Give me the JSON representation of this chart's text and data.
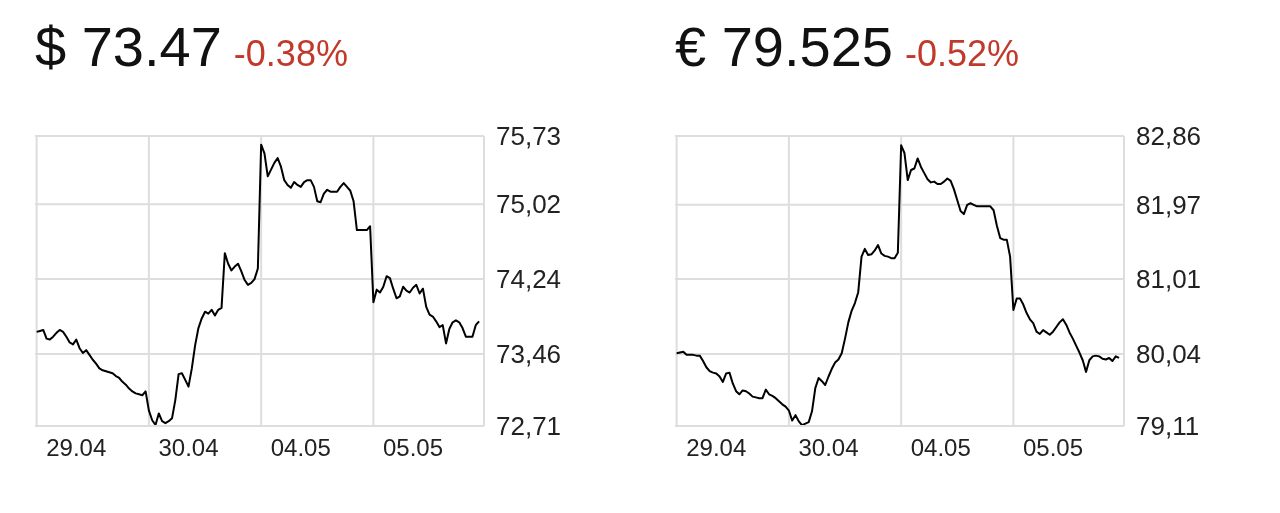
{
  "chart_data": [
    {
      "type": "line",
      "title": "$ 73.47",
      "subtitle": "-0.38%",
      "grid": true,
      "marker": "none",
      "categories": [
        null,
        null,
        null,
        null,
        null,
        null,
        null,
        null,
        null,
        null,
        null,
        null,
        "29.04",
        null,
        null,
        null,
        null,
        null,
        null,
        null,
        null,
        null,
        null,
        null,
        null,
        null,
        null,
        null,
        null,
        null,
        null,
        null,
        null,
        null,
        null,
        null,
        null,
        null,
        null,
        null,
        null,
        null,
        null,
        null,
        null,
        null,
        "30.04",
        null,
        null,
        null,
        null,
        null,
        null,
        null,
        null,
        null,
        null,
        null,
        null,
        null,
        null,
        null,
        null,
        null,
        null,
        null,
        null,
        null,
        null,
        null,
        null,
        null,
        null,
        null,
        null,
        null,
        null,
        null,
        null,
        null,
        "04.05",
        null,
        null,
        null,
        null,
        null,
        null,
        null,
        null,
        null,
        null,
        null,
        null,
        null,
        null,
        null,
        null,
        null,
        null,
        null,
        null,
        null,
        null,
        null,
        null,
        null,
        null,
        null,
        null,
        null,
        null,
        null,
        null,
        null,
        "05.05",
        null,
        null,
        null,
        null,
        null,
        null,
        null,
        null,
        null,
        null,
        null,
        null,
        null,
        null,
        null,
        null,
        null,
        null,
        null,
        null,
        null
      ],
      "ylim": [
        72.71,
        75.73
      ],
      "yticks": [
        {
          "value": 72.71,
          "label": "72,71"
        },
        {
          "value": 73.46,
          "label": "73,46"
        },
        {
          "value": 74.24,
          "label": "74,24"
        },
        {
          "value": 75.02,
          "label": "75,02"
        },
        {
          "value": 75.73,
          "label": "75,73"
        }
      ],
      "series": [
        {
          "color": "#000000",
          "values": [
            73.69,
            73.7,
            73.71,
            73.62,
            73.61,
            73.64,
            73.68,
            73.71,
            73.69,
            73.64,
            73.58,
            73.56,
            73.61,
            73.52,
            73.47,
            73.5,
            73.45,
            73.4,
            73.36,
            73.31,
            73.29,
            73.28,
            73.27,
            73.26,
            73.23,
            73.21,
            73.17,
            73.14,
            73.1,
            73.07,
            73.05,
            73.04,
            73.03,
            73.07,
            72.87,
            72.77,
            72.72,
            72.84,
            72.76,
            72.74,
            72.76,
            72.79,
            72.98,
            73.25,
            73.26,
            73.19,
            73.12,
            73.31,
            73.55,
            73.73,
            73.83,
            73.9,
            73.88,
            73.92,
            73.86,
            73.92,
            73.94,
            74.51,
            74.4,
            74.33,
            74.37,
            74.4,
            74.32,
            74.23,
            74.18,
            74.2,
            74.24,
            74.35,
            75.64,
            75.55,
            75.31,
            75.38,
            75.45,
            75.5,
            75.41,
            75.27,
            75.22,
            75.19,
            75.25,
            75.22,
            75.2,
            75.25,
            75.27,
            75.27,
            75.2,
            75.05,
            75.04,
            75.13,
            75.17,
            75.15,
            75.15,
            75.15,
            75.2,
            75.24,
            75.2,
            75.16,
            75.05,
            74.75,
            74.75,
            74.75,
            74.75,
            74.79,
            74.0,
            74.13,
            74.1,
            74.16,
            74.27,
            74.25,
            74.14,
            74.04,
            74.06,
            74.16,
            74.12,
            74.1,
            74.15,
            74.18,
            74.09,
            74.14,
            73.95,
            73.87,
            73.85,
            73.8,
            73.74,
            73.76,
            73.57,
            73.72,
            73.79,
            73.81,
            73.79,
            73.73,
            73.64,
            73.64,
            73.64,
            73.76,
            73.8,
            null
          ]
        }
      ]
    },
    {
      "type": "line",
      "title": "€ 79.525",
      "subtitle": "-0.52%",
      "grid": true,
      "marker": "none",
      "categories": [
        null,
        null,
        null,
        null,
        null,
        null,
        null,
        null,
        null,
        null,
        null,
        null,
        "29.04",
        null,
        null,
        null,
        null,
        null,
        null,
        null,
        null,
        null,
        null,
        null,
        null,
        null,
        null,
        null,
        null,
        null,
        null,
        null,
        null,
        null,
        null,
        null,
        null,
        null,
        null,
        null,
        null,
        null,
        null,
        null,
        null,
        null,
        "30.04",
        null,
        null,
        null,
        null,
        null,
        null,
        null,
        null,
        null,
        null,
        null,
        null,
        null,
        null,
        null,
        null,
        null,
        null,
        null,
        null,
        null,
        null,
        null,
        null,
        null,
        null,
        null,
        null,
        null,
        null,
        null,
        null,
        null,
        "04.05",
        null,
        null,
        null,
        null,
        null,
        null,
        null,
        null,
        null,
        null,
        null,
        null,
        null,
        null,
        null,
        null,
        null,
        null,
        null,
        null,
        null,
        null,
        null,
        null,
        null,
        null,
        null,
        null,
        null,
        null,
        null,
        null,
        null,
        "05.05",
        null,
        null,
        null,
        null,
        null,
        null,
        null,
        null,
        null,
        null,
        null,
        null,
        null,
        null,
        null,
        null,
        null,
        null,
        null,
        null,
        null
      ],
      "ylim": [
        79.11,
        82.86
      ],
      "yticks": [
        {
          "value": 79.11,
          "label": "79,11"
        },
        {
          "value": 80.04,
          "label": "80,04"
        },
        {
          "value": 81.01,
          "label": "81,01"
        },
        {
          "value": 81.97,
          "label": "81,97"
        },
        {
          "value": 82.86,
          "label": "82,86"
        }
      ],
      "series": [
        {
          "color": "#000000",
          "values": [
            80.05,
            80.06,
            80.07,
            80.03,
            80.03,
            80.03,
            80.02,
            80.02,
            79.95,
            79.87,
            79.82,
            79.8,
            79.79,
            79.75,
            79.68,
            79.79,
            79.8,
            79.66,
            79.56,
            79.52,
            79.57,
            79.56,
            79.53,
            79.49,
            79.48,
            79.47,
            79.47,
            79.58,
            79.52,
            79.5,
            79.47,
            79.43,
            79.39,
            79.36,
            79.31,
            79.18,
            79.25,
            79.17,
            79.12,
            79.14,
            79.16,
            79.3,
            79.6,
            79.73,
            79.69,
            79.64,
            79.75,
            79.85,
            79.93,
            79.97,
            80.05,
            80.24,
            80.45,
            80.6,
            80.7,
            80.84,
            81.3,
            81.4,
            81.32,
            81.33,
            81.38,
            81.45,
            81.34,
            81.31,
            81.3,
            81.28,
            81.28,
            81.35,
            82.74,
            82.64,
            82.29,
            82.42,
            82.44,
            82.57,
            82.46,
            82.38,
            82.3,
            82.26,
            82.27,
            82.24,
            82.24,
            82.27,
            82.31,
            82.28,
            82.17,
            82.03,
            81.89,
            81.85,
            81.97,
            81.99,
            81.97,
            81.95,
            81.95,
            81.95,
            81.95,
            81.95,
            81.9,
            81.7,
            81.54,
            81.52,
            81.52,
            81.3,
            80.61,
            80.76,
            80.76,
            80.68,
            80.57,
            80.49,
            80.44,
            80.33,
            80.3,
            80.35,
            80.32,
            80.29,
            80.33,
            80.39,
            80.45,
            80.49,
            80.42,
            80.32,
            80.24,
            80.15,
            80.06,
            79.96,
            79.81,
            79.96,
            80.01,
            80.02,
            80.01,
            79.98,
            79.97,
            79.99,
            79.95,
            80.01,
            79.99,
            null
          ]
        }
      ]
    }
  ]
}
